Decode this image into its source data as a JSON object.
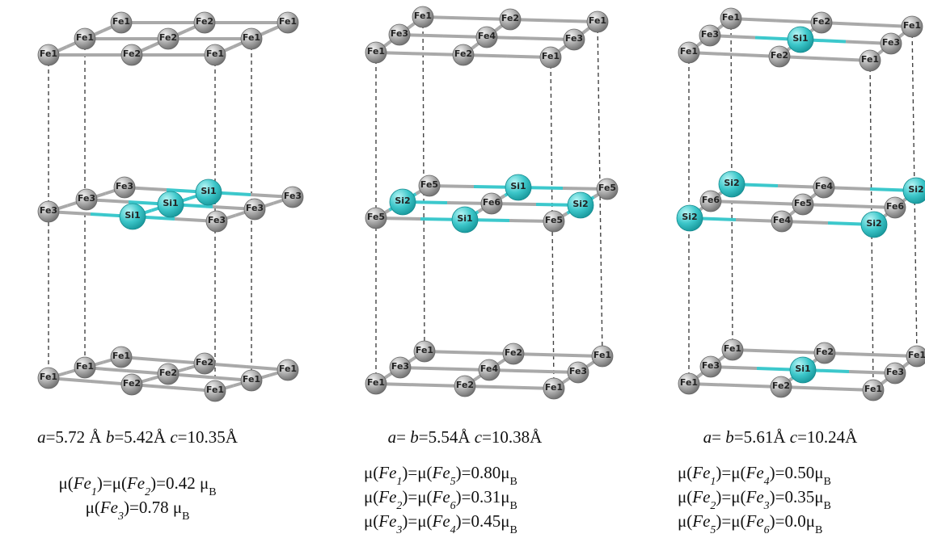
{
  "panels": [
    {
      "layers": [
        {
          "atoms": [
            "Fe1",
            "Fe2",
            "Fe1",
            "Fe1",
            "Fe2",
            "Fe1",
            "Fe1",
            "Fe2",
            "Fe1"
          ]
        },
        {
          "atoms": [
            "Fe3",
            "Si1",
            "Fe3",
            "Fe3",
            "Si1",
            "Fe3",
            "Fe3",
            "Si1",
            "Fe3"
          ]
        },
        {
          "atoms": [
            "Fe1",
            "Fe2",
            "Fe1",
            "Fe1",
            "Fe2",
            "Fe1",
            "Fe1",
            "Fe2",
            "Fe1"
          ]
        }
      ],
      "lattice": [
        {
          "text": "a",
          "style": "italic"
        },
        {
          "text": "=5.72 Å "
        },
        {
          "text": "b",
          "style": "italic"
        },
        {
          "text": "=5.42Å "
        },
        {
          "text": "c",
          "style": "italic"
        },
        {
          "text": "=10.35Å"
        }
      ],
      "moments": [
        [
          {
            "text": "μ("
          },
          {
            "text": "Fe",
            "style": "italic"
          },
          {
            "text": "1",
            "style": "italic-sub"
          },
          {
            "text": ")=μ("
          },
          {
            "text": "Fe",
            "style": "italic"
          },
          {
            "text": "2",
            "style": "italic-sub"
          },
          {
            "text": ")=0.42 μ"
          },
          {
            "text": "B",
            "style": "sub"
          }
        ],
        [
          {
            "text": "μ("
          },
          {
            "text": "Fe",
            "style": "italic"
          },
          {
            "text": "3",
            "style": "italic-sub"
          },
          {
            "text": ")=0.78 μ"
          },
          {
            "text": "B",
            "style": "sub"
          }
        ]
      ]
    },
    {
      "layers": [
        {
          "atoms": [
            "Fe1",
            "Fe2",
            "Fe1",
            "Fe3",
            "Fe4",
            "Fe3",
            "Fe1",
            "Fe2",
            "Fe1"
          ]
        },
        {
          "atoms": [
            "Fe5",
            "Si1",
            "Fe5",
            "Si2",
            "Fe6",
            "Si2",
            "Fe5",
            "Si1",
            "Fe5"
          ]
        },
        {
          "atoms": [
            "Fe1",
            "Fe2",
            "Fe1",
            "Fe3",
            "Fe4",
            "Fe3",
            "Fe1",
            "Fe2",
            "Fe1"
          ]
        }
      ],
      "lattice": [
        {
          "text": "a",
          "style": "italic"
        },
        {
          "text": "= "
        },
        {
          "text": "b",
          "style": "italic"
        },
        {
          "text": "=5.54Å "
        },
        {
          "text": "c",
          "style": "italic"
        },
        {
          "text": "=10.38Å"
        }
      ],
      "moments": [
        [
          {
            "text": "μ("
          },
          {
            "text": "Fe",
            "style": "italic"
          },
          {
            "text": "1",
            "style": "italic-sub"
          },
          {
            "text": ")=μ("
          },
          {
            "text": "Fe",
            "style": "italic"
          },
          {
            "text": "5",
            "style": "italic-sub"
          },
          {
            "text": ")=0.80μ"
          },
          {
            "text": "B",
            "style": "sub"
          }
        ],
        [
          {
            "text": "μ("
          },
          {
            "text": "Fe",
            "style": "italic"
          },
          {
            "text": "2",
            "style": "italic-sub"
          },
          {
            "text": ")=μ("
          },
          {
            "text": "Fe",
            "style": "italic"
          },
          {
            "text": "6",
            "style": "italic-sub"
          },
          {
            "text": ")=0.31μ"
          },
          {
            "text": "B",
            "style": "sub"
          }
        ],
        [
          {
            "text": "μ("
          },
          {
            "text": "Fe",
            "style": "italic"
          },
          {
            "text": "3",
            "style": "italic-sub"
          },
          {
            "text": ")=μ("
          },
          {
            "text": "Fe",
            "style": "italic"
          },
          {
            "text": "4",
            "style": "italic-sub"
          },
          {
            "text": ")=0.45μ"
          },
          {
            "text": "B",
            "style": "sub"
          }
        ]
      ]
    },
    {
      "layers": [
        {
          "atoms": [
            "Fe1",
            "Fe2",
            "Fe1",
            "Fe3",
            "Si1",
            "Fe3",
            "Fe1",
            "Fe2",
            "Fe1"
          ]
        },
        {
          "atoms": [
            "Si2",
            "Fe4",
            "Si2",
            "Fe6",
            "Fe5",
            "Fe6",
            "Si2",
            "Fe4",
            "Si2"
          ]
        },
        {
          "atoms": [
            "Fe1",
            "Fe2",
            "Fe1",
            "Fe3",
            "Si1",
            "Fe3",
            "Fe1",
            "Fe2",
            "Fe1"
          ]
        }
      ],
      "lattice": [
        {
          "text": "a",
          "style": "italic"
        },
        {
          "text": "= "
        },
        {
          "text": "b",
          "style": "italic"
        },
        {
          "text": "=5.61Å "
        },
        {
          "text": "c",
          "style": "italic"
        },
        {
          "text": "=10.24Å"
        }
      ],
      "moments": [
        [
          {
            "text": "μ("
          },
          {
            "text": "Fe",
            "style": "italic"
          },
          {
            "text": "1",
            "style": "italic-sub"
          },
          {
            "text": ")=μ("
          },
          {
            "text": "Fe",
            "style": "italic"
          },
          {
            "text": "4",
            "style": "italic-sub"
          },
          {
            "text": ")=0.50μ"
          },
          {
            "text": "B",
            "style": "sub"
          }
        ],
        [
          {
            "text": "μ("
          },
          {
            "text": "Fe",
            "style": "italic"
          },
          {
            "text": "2",
            "style": "italic-sub"
          },
          {
            "text": ")=μ("
          },
          {
            "text": "Fe",
            "style": "italic"
          },
          {
            "text": "3",
            "style": "italic-sub"
          },
          {
            "text": ")=0.35μ"
          },
          {
            "text": "B",
            "style": "sub"
          }
        ],
        [
          {
            "text": "μ("
          },
          {
            "text": "Fe",
            "style": "italic"
          },
          {
            "text": "5",
            "style": "italic-sub"
          },
          {
            "text": ")=μ("
          },
          {
            "text": "Fe",
            "style": "italic"
          },
          {
            "text": "6",
            "style": "italic-sub"
          },
          {
            "text": ")=0.0μ"
          },
          {
            "text": "B",
            "style": "sub"
          }
        ]
      ]
    }
  ]
}
